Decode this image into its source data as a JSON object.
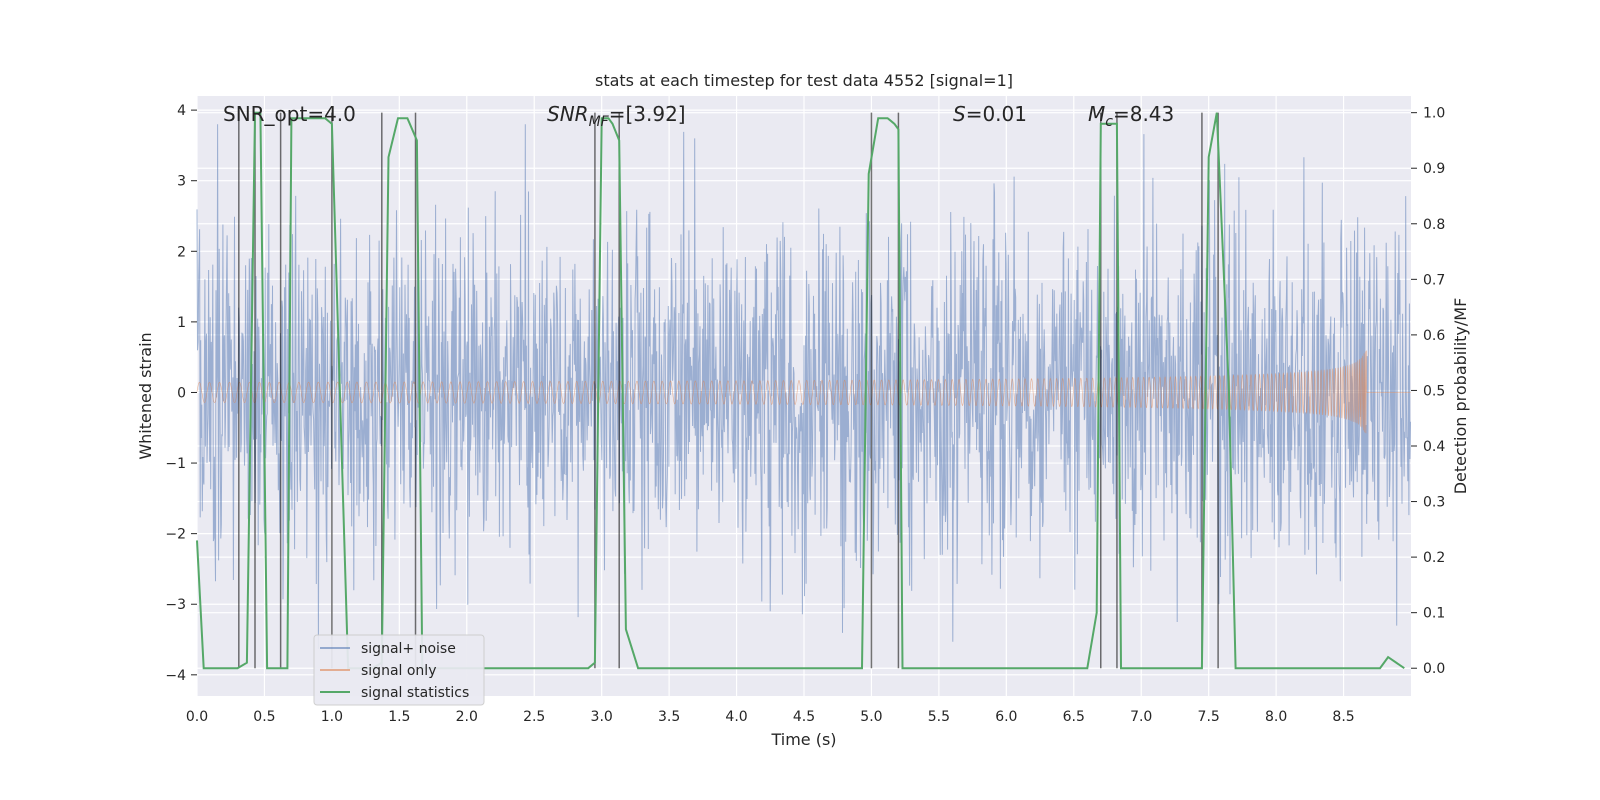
{
  "chart_data": {
    "type": "line",
    "title": "stats at each timestep for test data 4552 [signal=1]",
    "xlabel": "Time (s)",
    "ylabel": "Whitened strain",
    "ylabel_right": "Detection probability/MF",
    "xlim": [
      0.0,
      9.0
    ],
    "ylim": [
      -4.3,
      4.2
    ],
    "ylim_right": [
      -0.05,
      1.03
    ],
    "x_ticks": [
      0.0,
      0.5,
      1.0,
      1.5,
      2.0,
      2.5,
      3.0,
      3.5,
      4.0,
      4.5,
      5.0,
      5.5,
      6.0,
      6.5,
      7.0,
      7.5,
      8.0,
      8.5
    ],
    "x_tick_labels": [
      "0.0",
      "0.5",
      "1.0",
      "1.5",
      "2.0",
      "2.5",
      "3.0",
      "3.5",
      "4.0",
      "4.5",
      "5.0",
      "5.5",
      "6.0",
      "6.5",
      "7.0",
      "7.5",
      "8.0",
      "8.5"
    ],
    "y_ticks": [
      -4,
      -3,
      -2,
      -1,
      0,
      1,
      2,
      3,
      4
    ],
    "y_tick_labels": [
      "−4",
      "−3",
      "−2",
      "−1",
      "0",
      "1",
      "2",
      "3",
      "4"
    ],
    "y_right_ticks": [
      0.0,
      0.1,
      0.2,
      0.3,
      0.4,
      0.5,
      0.6,
      0.7,
      0.8,
      0.9,
      1.0
    ],
    "y_right_tick_labels": [
      "0.0",
      "0.1",
      "0.2",
      "0.3",
      "0.4",
      "0.5",
      "0.6",
      "0.7",
      "0.8",
      "0.9",
      "1.0"
    ],
    "annotations": {
      "snr_opt": "SNR_opt=4.0",
      "snr_mf_name": "SNR",
      "snr_mf_sub": "MF",
      "snr_mf_value": "=[3.92]",
      "s_name": "S",
      "s_value": "=0.01",
      "mc_name": "M",
      "mc_sub": "c",
      "mc_value": "=8.43"
    },
    "legend": {
      "placement": "lower-left",
      "entries": [
        "signal+ noise",
        "signal only",
        "signal statistics"
      ]
    },
    "series": [
      {
        "name": "signal+ noise",
        "axis": "left",
        "color": "#4c72b0",
        "description": "whitened strain, Gaussian noise with sigma ~1.2, spikes up to ~3.8 and down to ~-3.7",
        "noise_sigma": 1.2,
        "x_start": 0.0,
        "x_end": 9.0
      },
      {
        "name": "signal only",
        "axis": "left",
        "color": "#dd8452",
        "description": "chirp, near zero until ~5s, amplitude grows to ~0.65 at merger near 8.67s",
        "merger_time": 8.67,
        "peak_amplitude": 0.65,
        "x_start": 0.0,
        "x_end": 9.0
      },
      {
        "name": "signal statistics",
        "axis": "right",
        "color": "#55a868",
        "x": [
          0.0,
          0.05,
          0.25,
          0.3,
          0.37,
          0.43,
          0.47,
          0.52,
          0.62,
          0.67,
          0.7,
          0.77,
          0.95,
          1.0,
          1.12,
          1.2,
          1.25,
          1.3,
          1.37,
          1.42,
          1.49,
          1.56,
          1.63,
          1.67,
          1.73,
          1.8,
          2.9,
          2.95,
          3.0,
          3.05,
          3.08,
          3.13,
          3.18,
          3.27,
          3.35,
          4.9,
          4.93,
          4.98,
          5.05,
          5.12,
          5.17,
          5.2,
          5.23,
          5.3,
          6.4,
          6.6,
          6.67,
          6.7,
          6.75,
          6.82,
          6.85,
          6.91,
          7.0,
          7.45,
          7.5,
          7.56,
          7.65,
          7.7,
          7.8,
          8.6,
          8.77,
          8.83,
          8.95
        ],
        "values": [
          0.23,
          0.0,
          0.0,
          0.0,
          0.01,
          1.0,
          1.0,
          0.0,
          0.0,
          0.0,
          0.99,
          0.99,
          0.99,
          0.98,
          0.0,
          0.0,
          0.0,
          0.0,
          0.01,
          0.92,
          0.99,
          0.99,
          0.95,
          0.0,
          0.0,
          0.0,
          0.0,
          0.01,
          0.99,
          0.99,
          0.98,
          0.95,
          0.07,
          0.0,
          0.0,
          0.0,
          0.0,
          0.89,
          0.99,
          0.99,
          0.98,
          0.97,
          0.0,
          0.0,
          0.0,
          0.0,
          0.1,
          0.98,
          0.98,
          0.98,
          0.0,
          0.0,
          0.0,
          0.0,
          0.92,
          1.0,
          0.5,
          0.0,
          0.0,
          0.0,
          0.0,
          0.02,
          0.0
        ]
      }
    ],
    "vertical_lines": {
      "color": "#000000",
      "x": [
        0.31,
        0.43,
        0.62,
        1.0,
        1.37,
        1.62,
        2.95,
        3.13,
        5.0,
        5.2,
        6.7,
        6.82,
        7.45,
        7.57
      ]
    }
  }
}
